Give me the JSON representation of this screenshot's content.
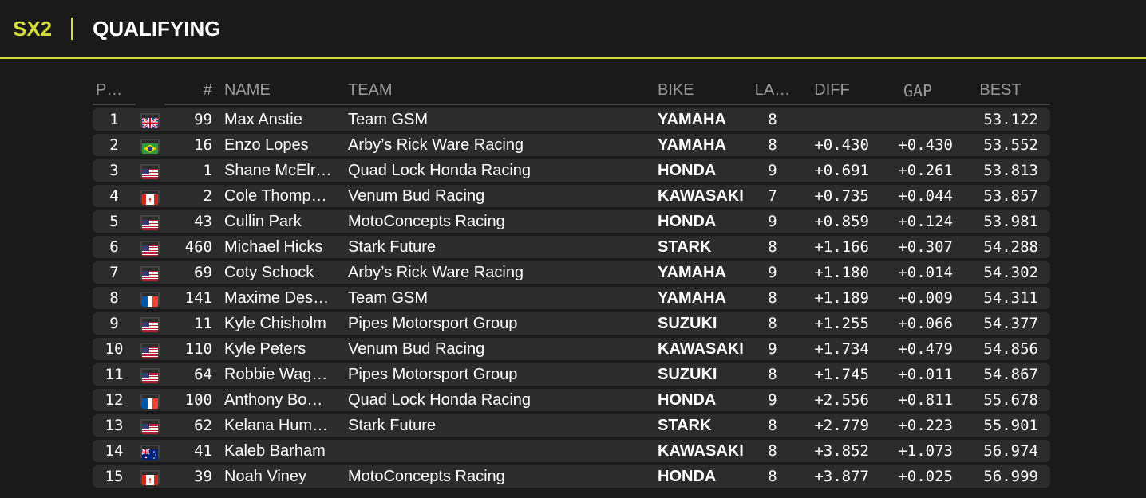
{
  "header": {
    "series": "SX2",
    "session": "QUALIFYING"
  },
  "colors": {
    "accent": "#d4dc3a",
    "background": "#1a1a1a",
    "row": "#2c2c2c"
  },
  "columns": {
    "pos": "P…",
    "num": "#",
    "name": "NAME",
    "team": "TEAM",
    "bike": "BIKE",
    "laps": "LA…",
    "diff": "DIFF",
    "gap": "GAP",
    "best": "BEST"
  },
  "rows": [
    {
      "pos": "1",
      "flag": "GB",
      "num": "99",
      "name": "Max Anstie",
      "team": "Team GSM",
      "bike": "YAMAHA",
      "laps": "8",
      "diff": "",
      "gap": "",
      "best": "53.122"
    },
    {
      "pos": "2",
      "flag": "BR",
      "num": "16",
      "name": "Enzo Lopes",
      "team": "Arby’s Rick Ware Racing",
      "bike": "YAMAHA",
      "laps": "8",
      "diff": "+0.430",
      "gap": "+0.430",
      "best": "53.552"
    },
    {
      "pos": "3",
      "flag": "US",
      "num": "1",
      "name": "Shane McElr…",
      "team": "Quad Lock Honda Racing",
      "bike": "HONDA",
      "laps": "9",
      "diff": "+0.691",
      "gap": "+0.261",
      "best": "53.813"
    },
    {
      "pos": "4",
      "flag": "CA",
      "num": "2",
      "name": "Cole Thomp…",
      "team": "Venum Bud Racing",
      "bike": "KAWASAKI",
      "laps": "7",
      "diff": "+0.735",
      "gap": "+0.044",
      "best": "53.857"
    },
    {
      "pos": "5",
      "flag": "US",
      "num": "43",
      "name": "Cullin Park",
      "team": "MotoConcepts Racing",
      "bike": "HONDA",
      "laps": "9",
      "diff": "+0.859",
      "gap": "+0.124",
      "best": "53.981"
    },
    {
      "pos": "6",
      "flag": "US",
      "num": "460",
      "name": "Michael Hicks",
      "team": "Stark Future",
      "bike": "STARK",
      "laps": "8",
      "diff": "+1.166",
      "gap": "+0.307",
      "best": "54.288"
    },
    {
      "pos": "7",
      "flag": "US",
      "num": "69",
      "name": "Coty Schock",
      "team": "Arby’s Rick Ware Racing",
      "bike": "YAMAHA",
      "laps": "9",
      "diff": "+1.180",
      "gap": "+0.014",
      "best": "54.302"
    },
    {
      "pos": "8",
      "flag": "FR",
      "num": "141",
      "name": "Maxime Des…",
      "team": "Team GSM",
      "bike": "YAMAHA",
      "laps": "8",
      "diff": "+1.189",
      "gap": "+0.009",
      "best": "54.311"
    },
    {
      "pos": "9",
      "flag": "US",
      "num": "11",
      "name": "Kyle Chisholm",
      "team": "Pipes Motorsport Group",
      "bike": "SUZUKI",
      "laps": "8",
      "diff": "+1.255",
      "gap": "+0.066",
      "best": "54.377"
    },
    {
      "pos": "10",
      "flag": "US",
      "num": "110",
      "name": "Kyle Peters",
      "team": "Venum Bud Racing",
      "bike": "KAWASAKI",
      "laps": "9",
      "diff": "+1.734",
      "gap": "+0.479",
      "best": "54.856"
    },
    {
      "pos": "11",
      "flag": "US",
      "num": "64",
      "name": "Robbie Wag…",
      "team": "Pipes Motorsport Group",
      "bike": "SUZUKI",
      "laps": "8",
      "diff": "+1.745",
      "gap": "+0.011",
      "best": "54.867"
    },
    {
      "pos": "12",
      "flag": "FR",
      "num": "100",
      "name": "Anthony Bo…",
      "team": "Quad Lock Honda Racing",
      "bike": "HONDA",
      "laps": "9",
      "diff": "+2.556",
      "gap": "+0.811",
      "best": "55.678"
    },
    {
      "pos": "13",
      "flag": "US",
      "num": "62",
      "name": "Kelana Hum…",
      "team": "Stark Future",
      "bike": "STARK",
      "laps": "8",
      "diff": "+2.779",
      "gap": "+0.223",
      "best": "55.901"
    },
    {
      "pos": "14",
      "flag": "AU",
      "num": "41",
      "name": "Kaleb Barham",
      "team": "",
      "bike": "KAWASAKI",
      "laps": "8",
      "diff": "+3.852",
      "gap": "+1.073",
      "best": "56.974"
    },
    {
      "pos": "15",
      "flag": "CA",
      "num": "39",
      "name": "Noah Viney",
      "team": "MotoConcepts Racing",
      "bike": "HONDA",
      "laps": "8",
      "diff": "+3.877",
      "gap": "+0.025",
      "best": "56.999"
    }
  ]
}
